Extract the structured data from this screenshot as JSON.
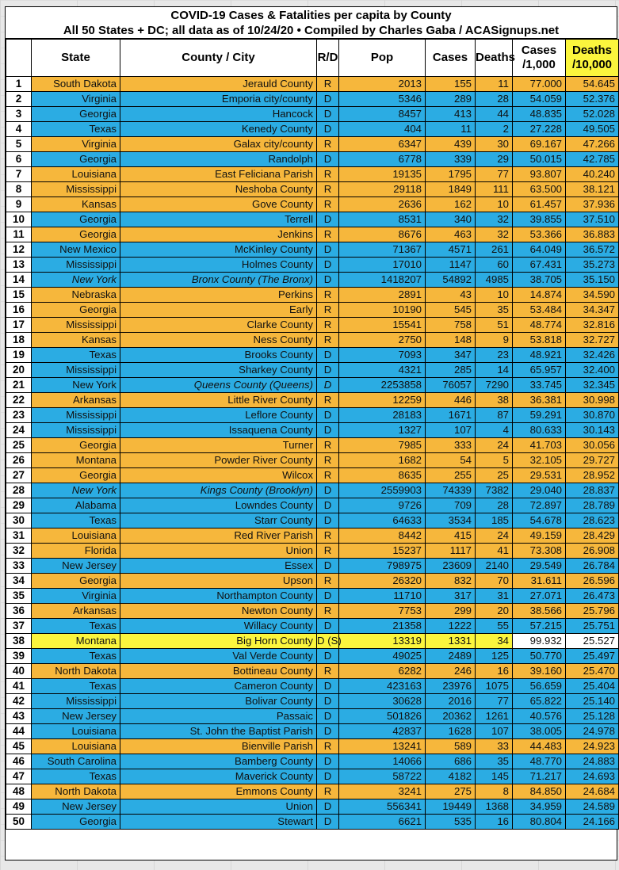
{
  "colors": {
    "republican_row": "#F6B73C",
    "democratic_row": "#2BACE3",
    "special_row": "#FBF53D",
    "highlight_header": "#FBF53D",
    "rank_cell": "#FFFFFF",
    "special_tail_cells": "#FFFFFF",
    "border": "#000000",
    "text": "#101010"
  },
  "chart_data": {
    "type": "table",
    "title": "COVID-19 Cases & Fatalities per capita by County",
    "subtitle": "All 50 States + DC; all data as of 10/24/20  • Compiled by Charles Gaba / ACASignups.net",
    "columns": [
      "",
      "State",
      "County / City",
      "R/D",
      "Pop",
      "Cases",
      "Deaths",
      "Cases\n/1,000",
      "Deaths\n/10,000"
    ],
    "row_fields": [
      "rank",
      "state",
      "county",
      "rd",
      "pop",
      "cases",
      "deaths",
      "cases_per_1000",
      "deaths_per_10000",
      "party",
      "italic_fields"
    ],
    "rows": [
      [
        1,
        "South Dakota",
        "Jerauld County",
        "R",
        2013,
        155,
        11,
        "77.000",
        "54.645",
        "R",
        []
      ],
      [
        2,
        "Virginia",
        "Emporia city/county",
        "D",
        5346,
        289,
        28,
        "54.059",
        "52.376",
        "D",
        []
      ],
      [
        3,
        "Georgia",
        "Hancock",
        "D",
        8457,
        413,
        44,
        "48.835",
        "52.028",
        "D",
        []
      ],
      [
        4,
        "Texas",
        "Kenedy County",
        "D",
        404,
        11,
        2,
        "27.228",
        "49.505",
        "D",
        []
      ],
      [
        5,
        "Virginia",
        "Galax city/county",
        "R",
        6347,
        439,
        30,
        "69.167",
        "47.266",
        "R",
        []
      ],
      [
        6,
        "Georgia",
        "Randolph",
        "D",
        6778,
        339,
        29,
        "50.015",
        "42.785",
        "D",
        []
      ],
      [
        7,
        "Louisiana",
        "East Feliciana Parish",
        "R",
        19135,
        1795,
        77,
        "93.807",
        "40.240",
        "R",
        []
      ],
      [
        8,
        "Mississippi",
        "Neshoba County",
        "R",
        29118,
        1849,
        111,
        "63.500",
        "38.121",
        "R",
        []
      ],
      [
        9,
        "Kansas",
        "Gove County",
        "R",
        2636,
        162,
        10,
        "61.457",
        "37.936",
        "R",
        []
      ],
      [
        10,
        "Georgia",
        "Terrell",
        "D",
        8531,
        340,
        32,
        "39.855",
        "37.510",
        "D",
        []
      ],
      [
        11,
        "Georgia",
        "Jenkins",
        "R",
        8676,
        463,
        32,
        "53.366",
        "36.883",
        "R",
        []
      ],
      [
        12,
        "New Mexico",
        "McKinley County",
        "D",
        71367,
        4571,
        261,
        "64.049",
        "36.572",
        "D",
        []
      ],
      [
        13,
        "Mississippi",
        "Holmes County",
        "D",
        17010,
        1147,
        60,
        "67.431",
        "35.273",
        "D",
        []
      ],
      [
        14,
        "New York",
        "Bronx County (The Bronx)",
        "D",
        1418207,
        54892,
        4985,
        "38.705",
        "35.150",
        "D",
        [
          "state",
          "county"
        ]
      ],
      [
        15,
        "Nebraska",
        "Perkins",
        "R",
        2891,
        43,
        10,
        "14.874",
        "34.590",
        "R",
        []
      ],
      [
        16,
        "Georgia",
        "Early",
        "R",
        10190,
        545,
        35,
        "53.484",
        "34.347",
        "R",
        []
      ],
      [
        17,
        "Mississippi",
        "Clarke County",
        "R",
        15541,
        758,
        51,
        "48.774",
        "32.816",
        "R",
        []
      ],
      [
        18,
        "Kansas",
        "Ness County",
        "R",
        2750,
        148,
        9,
        "53.818",
        "32.727",
        "R",
        []
      ],
      [
        19,
        "Texas",
        "Brooks County",
        "D",
        7093,
        347,
        23,
        "48.921",
        "32.426",
        "D",
        []
      ],
      [
        20,
        "Mississippi",
        "Sharkey County",
        "D",
        4321,
        285,
        14,
        "65.957",
        "32.400",
        "D",
        []
      ],
      [
        21,
        "New York",
        "Queens County (Queens)",
        "D",
        2253858,
        76057,
        7290,
        "33.745",
        "32.345",
        "D",
        [
          "county",
          "rd"
        ]
      ],
      [
        22,
        "Arkansas",
        "Little River County",
        "R",
        12259,
        446,
        38,
        "36.381",
        "30.998",
        "R",
        []
      ],
      [
        23,
        "Mississippi",
        "Leflore County",
        "D",
        28183,
        1671,
        87,
        "59.291",
        "30.870",
        "D",
        []
      ],
      [
        24,
        "Mississippi",
        "Issaquena County",
        "D",
        1327,
        107,
        4,
        "80.633",
        "30.143",
        "D",
        []
      ],
      [
        25,
        "Georgia",
        "Turner",
        "R",
        7985,
        333,
        24,
        "41.703",
        "30.056",
        "R",
        []
      ],
      [
        26,
        "Montana",
        "Powder River County",
        "R",
        1682,
        54,
        5,
        "32.105",
        "29.727",
        "R",
        []
      ],
      [
        27,
        "Georgia",
        "Wilcox",
        "R",
        8635,
        255,
        25,
        "29.531",
        "28.952",
        "R",
        []
      ],
      [
        28,
        "New York",
        "Kings County (Brooklyn)",
        "D",
        2559903,
        74339,
        7382,
        "29.040",
        "28.837",
        "D",
        [
          "state",
          "county"
        ]
      ],
      [
        29,
        "Alabama",
        "Lowndes County",
        "D",
        9726,
        709,
        28,
        "72.897",
        "28.789",
        "D",
        []
      ],
      [
        30,
        "Texas",
        "Starr County",
        "D",
        64633,
        3534,
        185,
        "54.678",
        "28.623",
        "D",
        []
      ],
      [
        31,
        "Louisiana",
        "Red River Parish",
        "R",
        8442,
        415,
        24,
        "49.159",
        "28.429",
        "R",
        []
      ],
      [
        32,
        "Florida",
        "Union",
        "R",
        15237,
        1117,
        41,
        "73.308",
        "26.908",
        "R",
        []
      ],
      [
        33,
        "New Jersey",
        "Essex",
        "D",
        798975,
        23609,
        2140,
        "29.549",
        "26.784",
        "D",
        []
      ],
      [
        34,
        "Georgia",
        "Upson",
        "R",
        26320,
        832,
        70,
        "31.611",
        "26.596",
        "R",
        []
      ],
      [
        35,
        "Virginia",
        "Northampton County",
        "D",
        11710,
        317,
        31,
        "27.071",
        "26.473",
        "D",
        []
      ],
      [
        36,
        "Arkansas",
        "Newton County",
        "R",
        7753,
        299,
        20,
        "38.566",
        "25.796",
        "R",
        []
      ],
      [
        37,
        "Texas",
        "Willacy County",
        "D",
        21358,
        1222,
        55,
        "57.215",
        "25.751",
        "D",
        []
      ],
      [
        38,
        "Montana",
        "Big Horn County",
        "D (S)",
        13319,
        1331,
        34,
        "99.932",
        "25.527",
        "S",
        []
      ],
      [
        39,
        "Texas",
        "Val Verde County",
        "D",
        49025,
        2489,
        125,
        "50.770",
        "25.497",
        "D",
        []
      ],
      [
        40,
        "North Dakota",
        "Bottineau County",
        "R",
        6282,
        246,
        16,
        "39.160",
        "25.470",
        "R",
        []
      ],
      [
        41,
        "Texas",
        "Cameron County",
        "D",
        423163,
        23976,
        1075,
        "56.659",
        "25.404",
        "D",
        []
      ],
      [
        42,
        "Mississippi",
        "Bolivar County",
        "D",
        30628,
        2016,
        77,
        "65.822",
        "25.140",
        "D",
        []
      ],
      [
        43,
        "New Jersey",
        "Passaic",
        "D",
        501826,
        20362,
        1261,
        "40.576",
        "25.128",
        "D",
        []
      ],
      [
        44,
        "Louisiana",
        "St. John the Baptist Parish",
        "D",
        42837,
        1628,
        107,
        "38.005",
        "24.978",
        "D",
        []
      ],
      [
        45,
        "Louisiana",
        "Bienville Parish",
        "R",
        13241,
        589,
        33,
        "44.483",
        "24.923",
        "R",
        []
      ],
      [
        46,
        "South Carolina",
        "Bamberg County",
        "D",
        14066,
        686,
        35,
        "48.770",
        "24.883",
        "D",
        []
      ],
      [
        47,
        "Texas",
        "Maverick County",
        "D",
        58722,
        4182,
        145,
        "71.217",
        "24.693",
        "D",
        []
      ],
      [
        48,
        "North Dakota",
        "Emmons County",
        "R",
        3241,
        275,
        8,
        "84.850",
        "24.684",
        "R",
        []
      ],
      [
        49,
        "New Jersey",
        "Union",
        "D",
        556341,
        19449,
        1368,
        "34.959",
        "24.589",
        "D",
        []
      ],
      [
        50,
        "Georgia",
        "Stewart",
        "D",
        6621,
        535,
        16,
        "80.804",
        "24.166",
        "D",
        []
      ]
    ]
  }
}
